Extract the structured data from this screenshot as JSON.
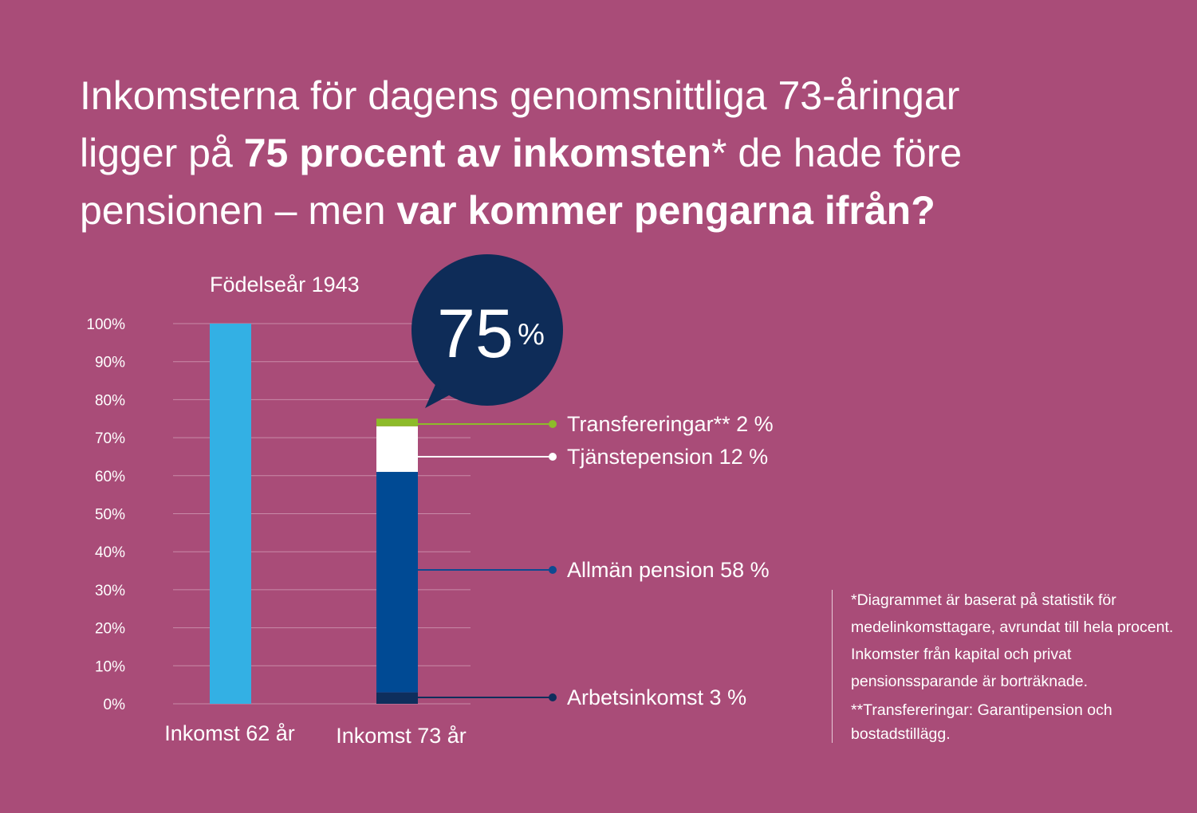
{
  "headline": {
    "line1": "Inkomsterna för dagens genomsnittliga 73-åringar",
    "line2_pre": "ligger på ",
    "line2_bold": "75 procent av inkomsten",
    "line2_post": "* de hade före",
    "line3_pre": "pensionen – men ",
    "line3_bold": "var kommer pengarna ifrån?"
  },
  "chart_data": {
    "type": "bar",
    "stacked": true,
    "subtitle": "Födelseår 1943",
    "categories": [
      "Inkomst 62 år",
      "Inkomst 73 år"
    ],
    "y_ticks": [
      "0%",
      "10%",
      "20%",
      "30%",
      "40%",
      "50%",
      "60%",
      "70%",
      "80%",
      "90%",
      "100%"
    ],
    "ylim": [
      0,
      100
    ],
    "grid": true,
    "series": [
      {
        "name": "Inkomst 62 år",
        "values": [
          100,
          0
        ],
        "color": "#33b0e4"
      },
      {
        "name": "Arbetsinkomst",
        "values": [
          0,
          3
        ],
        "color": "#0e2e5c"
      },
      {
        "name": "Allmän pension",
        "values": [
          0,
          58
        ],
        "color": "#004a94"
      },
      {
        "name": "Tjänstepension",
        "values": [
          0,
          12
        ],
        "color": "#ffffff"
      },
      {
        "name": "Transfereringar",
        "values": [
          0,
          2
        ],
        "color": "#8dbb2a"
      }
    ],
    "labels": [
      {
        "series": "Transfereringar",
        "text": "Transfereringar** 2 %",
        "color": "#8dbb2a"
      },
      {
        "series": "Tjänstepension",
        "text": "Tjänstepension 12 %",
        "color": "#ffffff"
      },
      {
        "series": "Allmän pension",
        "text": "Allmän pension 58 %",
        "color": "#0d4a91"
      },
      {
        "series": "Arbetsinkomst",
        "text": "Arbetsinkomst 3 %",
        "color": "#0e2e5c"
      }
    ],
    "callout": {
      "value": "75",
      "unit": "%",
      "color": "#0e2c58"
    }
  },
  "footnote": {
    "text1": "*Diagrammet är baserat på statistik för medelinkomsttagare, avrundat till hela procent. Inkomster från kapital och privat pensionssparande är borträknade.",
    "text2": "**Transfereringar: Garantipension och bostadstillägg."
  }
}
